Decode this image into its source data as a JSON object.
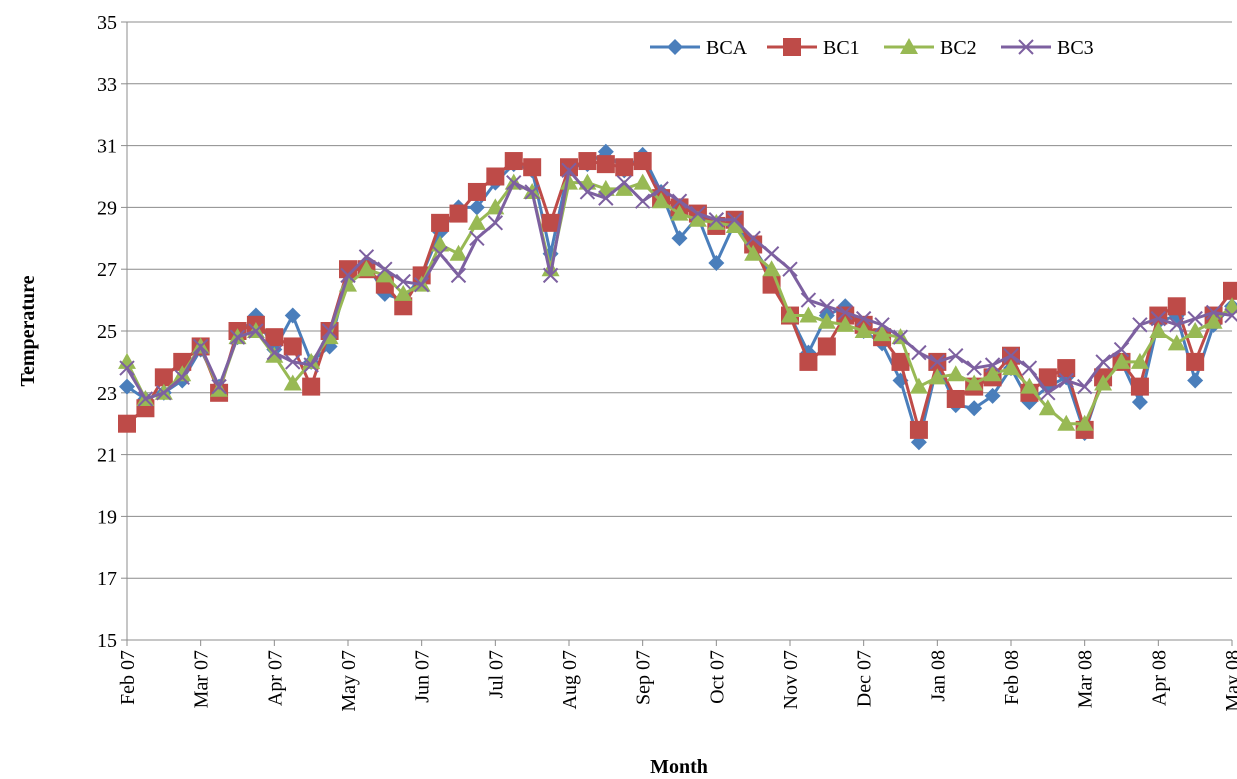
{
  "chart_data": {
    "type": "line",
    "y_label": "Temperature",
    "x_label": "Month",
    "categories": [
      "Feb 07",
      null,
      null,
      null,
      "Mar 07",
      null,
      null,
      null,
      "Apr 07",
      null,
      null,
      null,
      "May 07",
      null,
      null,
      null,
      "Jun 07",
      null,
      null,
      null,
      "Jul 07",
      null,
      null,
      null,
      "Aug 07",
      null,
      null,
      null,
      "Sep 07",
      null,
      null,
      null,
      "Oct 07",
      null,
      null,
      null,
      "Nov 07",
      null,
      null,
      null,
      "Dec 07",
      null,
      null,
      null,
      "Jan 08",
      null,
      null,
      null,
      "Feb 08",
      null,
      null,
      null,
      "Mar 08",
      null,
      null,
      null,
      "Apr 08",
      null,
      null,
      null,
      "May 08"
    ],
    "ylim": [
      15,
      35
    ],
    "yticks": [
      15,
      17,
      19,
      21,
      23,
      25,
      27,
      29,
      31,
      33,
      35
    ],
    "grid": true,
    "legend": "upper right",
    "series": [
      {
        "name": "BCA",
        "color": "#4a7ebb",
        "marker": "diamond",
        "values": [
          23.2,
          22.8,
          23.0,
          23.4,
          24.4,
          23.2,
          24.8,
          25.5,
          24.4,
          25.5,
          24.0,
          24.5,
          26.8,
          27.2,
          26.2,
          26.0,
          26.8,
          28.2,
          29.0,
          29.0,
          29.8,
          30.4,
          30.2,
          27.5,
          30.3,
          30.4,
          30.8,
          30.2,
          30.7,
          29.5,
          28.0,
          28.7,
          27.2,
          28.5,
          27.7,
          26.8,
          25.5,
          24.3,
          25.5,
          25.8,
          25.0,
          24.6,
          23.4,
          21.4,
          23.9,
          22.6,
          22.5,
          22.9,
          23.8,
          22.7,
          23.2,
          23.5,
          21.7,
          23.5,
          24.0,
          22.7,
          25.3,
          25.5,
          23.4,
          25.2,
          25.8
        ]
      },
      {
        "name": "BC1",
        "color": "#be4b48",
        "marker": "square",
        "values": [
          22.0,
          22.5,
          23.5,
          24.0,
          24.5,
          23.0,
          25.0,
          25.2,
          24.8,
          24.5,
          23.2,
          25.0,
          27.0,
          27.0,
          26.5,
          25.8,
          26.8,
          28.5,
          28.8,
          29.5,
          30.0,
          30.5,
          30.3,
          28.5,
          30.3,
          30.5,
          30.4,
          30.3,
          30.5,
          29.3,
          29.0,
          28.8,
          28.4,
          28.6,
          27.8,
          26.5,
          25.5,
          24.0,
          24.5,
          25.5,
          25.2,
          24.8,
          24.0,
          21.8,
          24.0,
          22.8,
          23.2,
          23.5,
          24.2,
          23.0,
          23.5,
          23.8,
          21.8,
          23.5,
          24.0,
          23.2,
          25.5,
          25.8,
          24.0,
          25.5,
          26.3
        ]
      },
      {
        "name": "BC2",
        "color": "#98b954",
        "marker": "triangle",
        "values": [
          24.0,
          22.8,
          23.0,
          23.6,
          24.5,
          23.1,
          24.8,
          25.0,
          24.2,
          23.3,
          24.0,
          24.8,
          26.5,
          27.0,
          26.8,
          26.2,
          26.5,
          27.8,
          27.5,
          28.5,
          29.0,
          29.8,
          29.5,
          27.0,
          29.8,
          29.8,
          29.6,
          29.6,
          29.8,
          29.2,
          28.8,
          28.6,
          28.5,
          28.4,
          27.5,
          27.0,
          25.5,
          25.5,
          25.3,
          25.2,
          25.0,
          24.9,
          24.8,
          23.2,
          23.5,
          23.6,
          23.3,
          23.6,
          23.8,
          23.2,
          22.5,
          22.0,
          22.0,
          23.3,
          24.0,
          24.0,
          25.0,
          24.6,
          25.0,
          25.3,
          25.8
        ]
      },
      {
        "name": "BC3",
        "color": "#7d60a0",
        "marker": "x",
        "values": [
          23.8,
          22.8,
          23.0,
          23.5,
          24.5,
          23.2,
          24.8,
          25.0,
          24.3,
          24.0,
          23.9,
          25.0,
          26.8,
          27.4,
          27.0,
          26.6,
          26.5,
          27.5,
          26.8,
          28.0,
          28.5,
          29.8,
          29.5,
          26.8,
          30.2,
          29.5,
          29.3,
          29.8,
          29.2,
          29.6,
          29.2,
          28.8,
          28.6,
          28.6,
          28.0,
          27.5,
          27.0,
          26.0,
          25.8,
          25.6,
          25.4,
          25.2,
          24.8,
          24.3,
          24.0,
          24.2,
          23.8,
          23.9,
          24.2,
          23.8,
          23.0,
          23.4,
          23.2,
          24.0,
          24.4,
          25.2,
          25.4,
          25.2,
          25.4,
          25.6,
          25.5
        ]
      }
    ]
  }
}
